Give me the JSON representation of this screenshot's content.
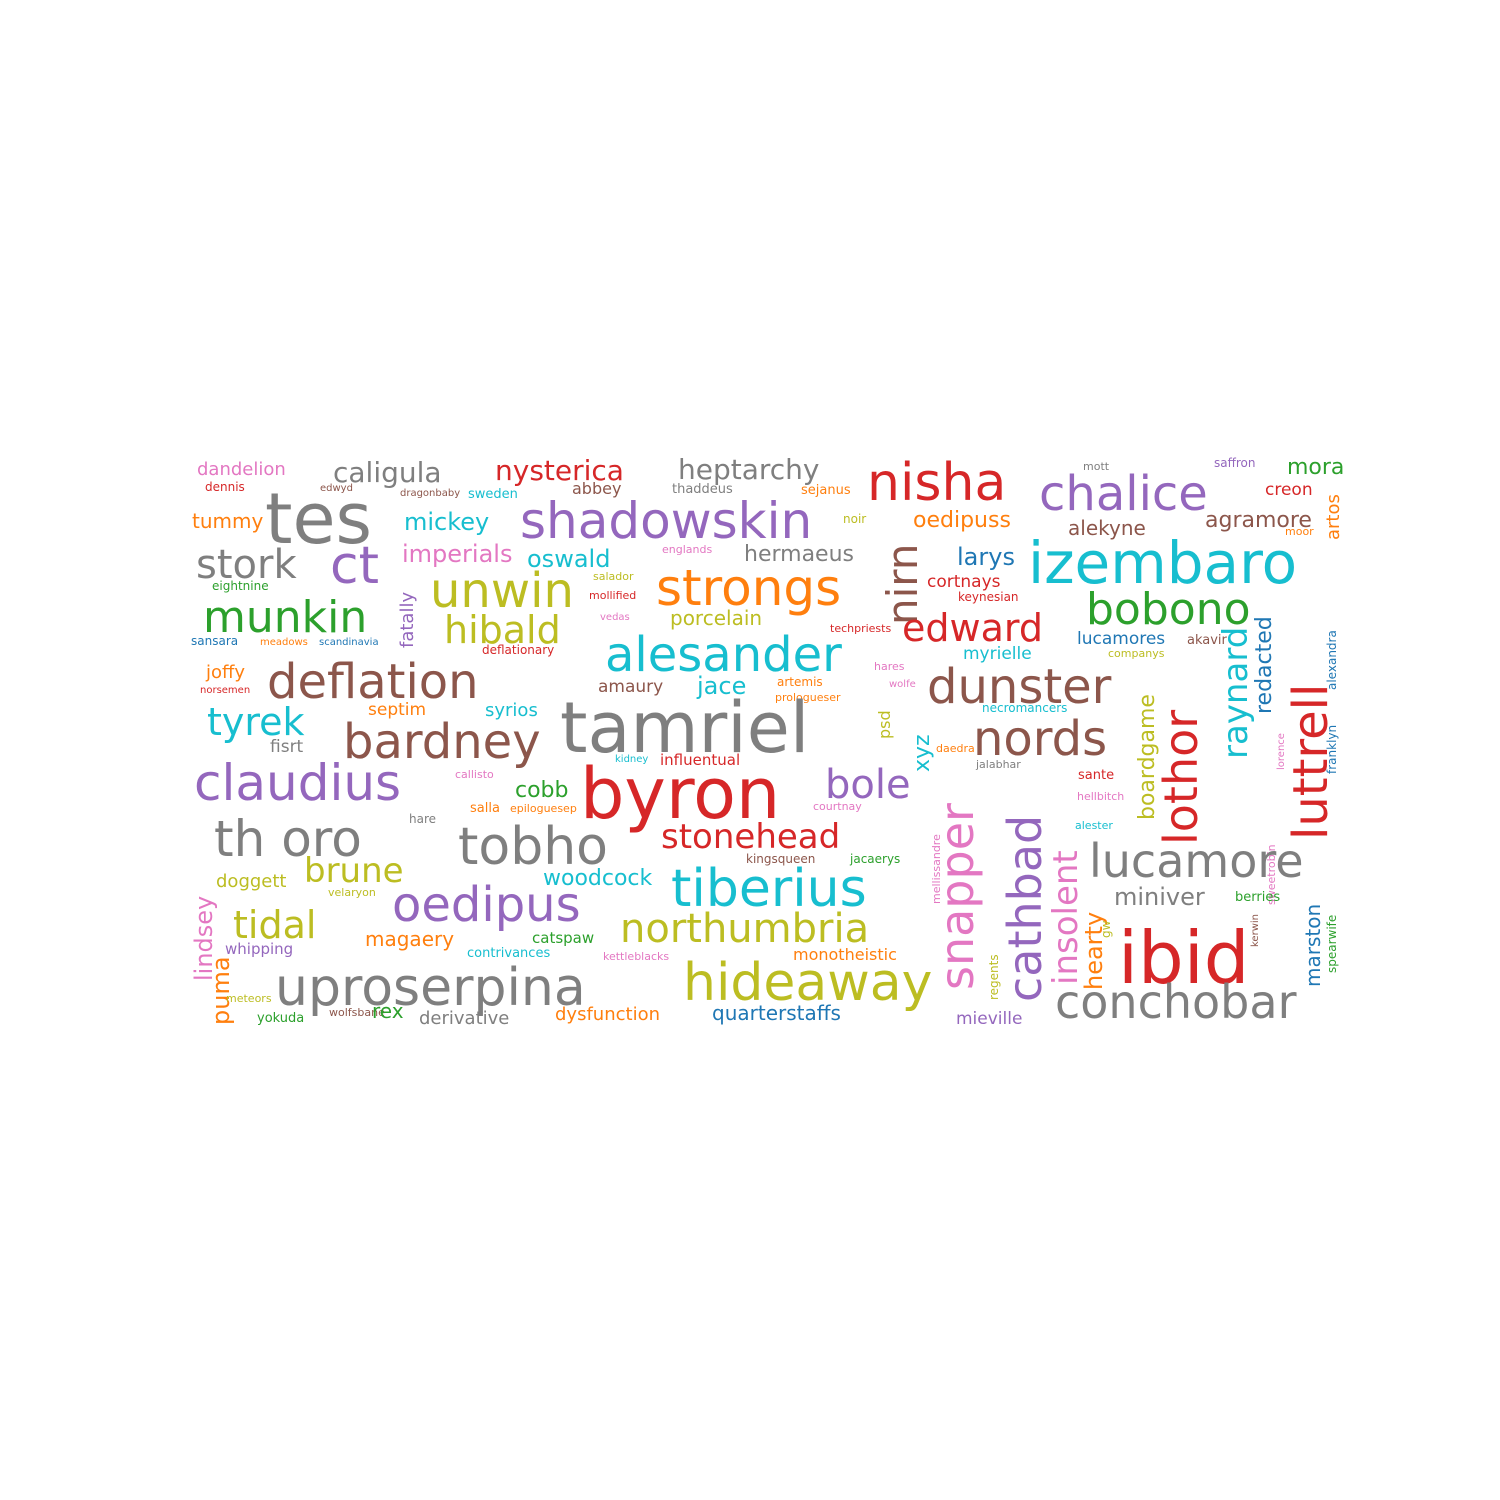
{
  "palette": {
    "blue": "#1f77b4",
    "orange": "#ff7f0e",
    "green": "#2ca02c",
    "red": "#d62728",
    "purple": "#9467bd",
    "brown": "#8c564b",
    "pink": "#e377c2",
    "gray": "#7f7f7f",
    "olive": "#bcbd22",
    "cyan": "#17becf"
  },
  "words": [
    {
      "text": "dandelion",
      "color": "pink"
    },
    {
      "text": "tes",
      "color": "gray"
    },
    {
      "text": "caligula",
      "color": "gray"
    },
    {
      "text": "nysterica",
      "color": "red"
    },
    {
      "text": "heptarchy",
      "color": "gray"
    },
    {
      "text": "nisha",
      "color": "red"
    },
    {
      "text": "mott",
      "color": "gray"
    },
    {
      "text": "saffron",
      "color": "purple"
    },
    {
      "text": "mora",
      "color": "green"
    },
    {
      "text": "dennis",
      "color": "red"
    },
    {
      "text": "edwyd",
      "color": "brown"
    },
    {
      "text": "dragonbaby",
      "color": "brown"
    },
    {
      "text": "sweden",
      "color": "cyan"
    },
    {
      "text": "abbey",
      "color": "brown"
    },
    {
      "text": "thaddeus",
      "color": "gray"
    },
    {
      "text": "sejanus",
      "color": "orange"
    },
    {
      "text": "chalice",
      "color": "purple"
    },
    {
      "text": "creon",
      "color": "red"
    },
    {
      "text": "tummy",
      "color": "orange"
    },
    {
      "text": "shadowskin",
      "color": "purple"
    },
    {
      "text": "mickey",
      "color": "cyan"
    },
    {
      "text": "noir",
      "color": "olive"
    },
    {
      "text": "oedipuss",
      "color": "orange"
    },
    {
      "text": "alekyne",
      "color": "brown"
    },
    {
      "text": "agramore",
      "color": "brown"
    },
    {
      "text": "artos",
      "color": "orange"
    },
    {
      "text": "moor",
      "color": "orange"
    },
    {
      "text": "stork",
      "color": "gray"
    },
    {
      "text": "ct",
      "color": "purple"
    },
    {
      "text": "imperials",
      "color": "pink"
    },
    {
      "text": "oswald",
      "color": "cyan"
    },
    {
      "text": "englands",
      "color": "pink"
    },
    {
      "text": "hermaeus",
      "color": "gray"
    },
    {
      "text": "nirn",
      "color": "brown"
    },
    {
      "text": "larys",
      "color": "blue"
    },
    {
      "text": "izembaro",
      "color": "cyan"
    },
    {
      "text": "unwin",
      "color": "olive"
    },
    {
      "text": "salador",
      "color": "olive"
    },
    {
      "text": "strongs",
      "color": "orange"
    },
    {
      "text": "cortnays",
      "color": "red"
    },
    {
      "text": "eightnine",
      "color": "green"
    },
    {
      "text": "munkin",
      "color": "green"
    },
    {
      "text": "fatally",
      "color": "purple"
    },
    {
      "text": "mollified",
      "color": "red"
    },
    {
      "text": "keynesian",
      "color": "red"
    },
    {
      "text": "bobono",
      "color": "green"
    },
    {
      "text": "hibald",
      "color": "olive"
    },
    {
      "text": "porcelain",
      "color": "olive"
    },
    {
      "text": "techpriests",
      "color": "red"
    },
    {
      "text": "edward",
      "color": "red"
    },
    {
      "text": "luttrell",
      "color": "red"
    },
    {
      "text": "alexandra",
      "color": "blue"
    },
    {
      "text": "sansara",
      "color": "blue"
    },
    {
      "text": "meadows",
      "color": "orange"
    },
    {
      "text": "scandinavia",
      "color": "blue"
    },
    {
      "text": "vedas",
      "color": "pink"
    },
    {
      "text": "alesander",
      "color": "cyan"
    },
    {
      "text": "lucamores",
      "color": "blue"
    },
    {
      "text": "akavir",
      "color": "brown"
    },
    {
      "text": "deflationary",
      "color": "red"
    },
    {
      "text": "myrielle",
      "color": "cyan"
    },
    {
      "text": "companys",
      "color": "olive"
    },
    {
      "text": "redacted",
      "color": "blue"
    },
    {
      "text": "joffy",
      "color": "orange"
    },
    {
      "text": "deflation",
      "color": "brown"
    },
    {
      "text": "hares",
      "color": "pink"
    },
    {
      "text": "dunster",
      "color": "brown"
    },
    {
      "text": "raynard",
      "color": "cyan"
    },
    {
      "text": "norsemen",
      "color": "red"
    },
    {
      "text": "amaury",
      "color": "brown"
    },
    {
      "text": "jace",
      "color": "cyan"
    },
    {
      "text": "artemis",
      "color": "orange"
    },
    {
      "text": "wolfe",
      "color": "pink"
    },
    {
      "text": "lothor",
      "color": "red"
    },
    {
      "text": "prologueser",
      "color": "orange"
    },
    {
      "text": "franklyn",
      "color": "blue"
    },
    {
      "text": "tyrek",
      "color": "cyan"
    },
    {
      "text": "septim",
      "color": "orange"
    },
    {
      "text": "syrios",
      "color": "cyan"
    },
    {
      "text": "tamriel",
      "color": "gray"
    },
    {
      "text": "psd",
      "color": "olive"
    },
    {
      "text": "necromancers",
      "color": "cyan"
    },
    {
      "text": "bardney",
      "color": "brown"
    },
    {
      "text": "nords",
      "color": "brown"
    },
    {
      "text": "fisrt",
      "color": "gray"
    },
    {
      "text": "xyz",
      "color": "cyan"
    },
    {
      "text": "boardgame",
      "color": "olive"
    },
    {
      "text": "kidney",
      "color": "cyan"
    },
    {
      "text": "influentual",
      "color": "red"
    },
    {
      "text": "daedra",
      "color": "orange"
    },
    {
      "text": "jalabhar",
      "color": "gray"
    },
    {
      "text": "claudius",
      "color": "purple"
    },
    {
      "text": "callisto",
      "color": "pink"
    },
    {
      "text": "cobb",
      "color": "green"
    },
    {
      "text": "byron",
      "color": "red"
    },
    {
      "text": "bole",
      "color": "purple"
    },
    {
      "text": "sante",
      "color": "red"
    },
    {
      "text": "salla",
      "color": "orange"
    },
    {
      "text": "epiloguesep",
      "color": "orange"
    },
    {
      "text": "courtnay",
      "color": "pink"
    },
    {
      "text": "hellbitch",
      "color": "pink"
    },
    {
      "text": "snapper",
      "color": "pink"
    },
    {
      "text": "cathbad",
      "color": "purple"
    },
    {
      "text": "insolent",
      "color": "pink"
    },
    {
      "text": "sweetrobin",
      "color": "pink"
    },
    {
      "text": "hare",
      "color": "gray"
    },
    {
      "text": "alester",
      "color": "cyan"
    },
    {
      "text": "lorence",
      "color": "pink"
    },
    {
      "text": "th oro",
      "color": "gray"
    },
    {
      "text": "tobho",
      "color": "gray"
    },
    {
      "text": "stonehead",
      "color": "red"
    },
    {
      "text": "mellissandre",
      "color": "pink"
    },
    {
      "text": "lucamore",
      "color": "gray"
    },
    {
      "text": "kingsqueen",
      "color": "brown"
    },
    {
      "text": "jacaerys",
      "color": "green"
    },
    {
      "text": "lindsey",
      "color": "pink"
    },
    {
      "text": "brune",
      "color": "olive"
    },
    {
      "text": "doggett",
      "color": "olive"
    },
    {
      "text": "woodcock",
      "color": "cyan"
    },
    {
      "text": "tiberius",
      "color": "cyan"
    },
    {
      "text": "velaryon",
      "color": "olive"
    },
    {
      "text": "oedipus",
      "color": "purple"
    },
    {
      "text": "miniver",
      "color": "gray"
    },
    {
      "text": "berries",
      "color": "green"
    },
    {
      "text": "marston",
      "color": "blue"
    },
    {
      "text": "spearwife",
      "color": "green"
    },
    {
      "text": "tidal",
      "color": "olive"
    },
    {
      "text": "northumbria",
      "color": "olive"
    },
    {
      "text": "hearty",
      "color": "orange"
    },
    {
      "text": "gw",
      "color": "olive"
    },
    {
      "text": "kerwin",
      "color": "brown"
    },
    {
      "text": "magaery",
      "color": "orange"
    },
    {
      "text": "whipping",
      "color": "purple"
    },
    {
      "text": "catspaw",
      "color": "green"
    },
    {
      "text": "ibid",
      "color": "red"
    },
    {
      "text": "contrivances",
      "color": "cyan"
    },
    {
      "text": "kettleblacks",
      "color": "pink"
    },
    {
      "text": "monotheistic",
      "color": "orange"
    },
    {
      "text": "regents",
      "color": "olive"
    },
    {
      "text": "puma",
      "color": "orange"
    },
    {
      "text": "uproserpina",
      "color": "gray"
    },
    {
      "text": "hideaway",
      "color": "olive"
    },
    {
      "text": "conchobar",
      "color": "gray"
    },
    {
      "text": "meteors",
      "color": "olive"
    },
    {
      "text": "wolfsbane",
      "color": "brown"
    },
    {
      "text": "rex",
      "color": "green"
    },
    {
      "text": "yokuda",
      "color": "green"
    },
    {
      "text": "derivative",
      "color": "gray"
    },
    {
      "text": "dysfunction",
      "color": "orange"
    },
    {
      "text": "quarterstaffs",
      "color": "blue"
    },
    {
      "text": "mieville",
      "color": "purple"
    }
  ]
}
